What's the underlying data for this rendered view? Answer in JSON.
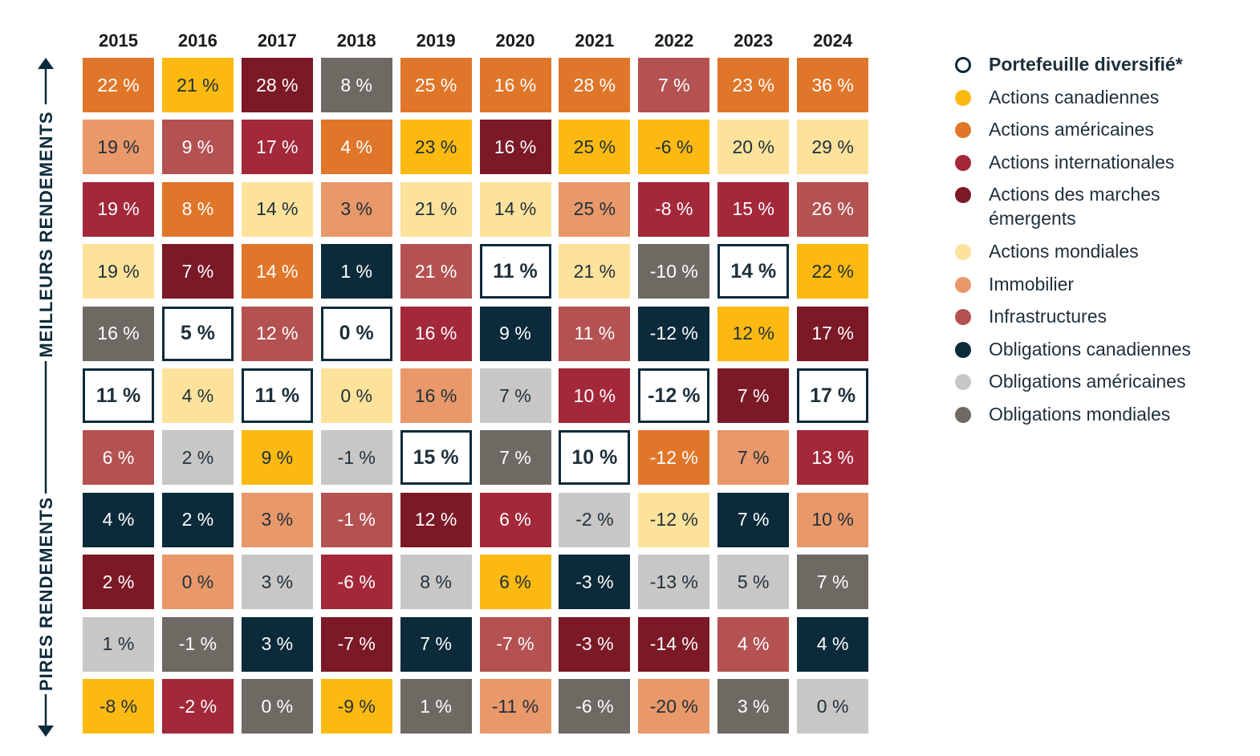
{
  "years": [
    "2015",
    "2016",
    "2017",
    "2018",
    "2019",
    "2020",
    "2021",
    "2022",
    "2023",
    "2024"
  ],
  "axis_labels": {
    "top": "MEILLEURS RENDEMENTS",
    "bottom": "PIRES RENDEMENTS"
  },
  "legend": [
    {
      "name": "Portefeuille diversifié*",
      "color": "#ffffff",
      "outline": "#0b2a3a"
    },
    {
      "name": "Actions canadiennes",
      "color": "#fbb912"
    },
    {
      "name": "Actions américaines",
      "color": "#e0762a"
    },
    {
      "name": "Actions internationales",
      "color": "#a3283a"
    },
    {
      "name": "Actions des marches émergents",
      "color": "#7b1927"
    },
    {
      "name": "Actions mondiales",
      "color": "#fde29c"
    },
    {
      "name": "Immobilier",
      "color": "#e9986a"
    },
    {
      "name": "Infrastructures",
      "color": "#b45252"
    },
    {
      "name": "Obligations canadiennes",
      "color": "#0b2a3a"
    },
    {
      "name": "Obligations américaines",
      "color": "#c9c7c5"
    },
    {
      "name": "Obligations mondiales",
      "color": "#6f6964"
    }
  ],
  "rows": [
    [
      {
        "label": "22 %",
        "asset": 2
      },
      {
        "label": "21 %",
        "asset": 1
      },
      {
        "label": "28 %",
        "asset": 4
      },
      {
        "label": "8 %",
        "asset": 10
      },
      {
        "label": "25 %",
        "asset": 2
      },
      {
        "label": "16 %",
        "asset": 2
      },
      {
        "label": "28 %",
        "asset": 2
      },
      {
        "label": "7 %",
        "asset": 7
      },
      {
        "label": "23 %",
        "asset": 2
      },
      {
        "label": "36 %",
        "asset": 2
      }
    ],
    [
      {
        "label": "19 %",
        "asset": 6
      },
      {
        "label": "9 %",
        "asset": 7
      },
      {
        "label": "17 %",
        "asset": 3
      },
      {
        "label": "4 %",
        "asset": 2
      },
      {
        "label": "23 %",
        "asset": 1
      },
      {
        "label": "16 %",
        "asset": 4
      },
      {
        "label": "25 %",
        "asset": 1
      },
      {
        "label": "-6 %",
        "asset": 1
      },
      {
        "label": "20 %",
        "asset": 5
      },
      {
        "label": "29 %",
        "asset": 5
      }
    ],
    [
      {
        "label": "19 %",
        "asset": 3
      },
      {
        "label": "8 %",
        "asset": 2
      },
      {
        "label": "14 %",
        "asset": 5
      },
      {
        "label": "3 %",
        "asset": 6
      },
      {
        "label": "21 %",
        "asset": 5
      },
      {
        "label": "14 %",
        "asset": 5
      },
      {
        "label": "25 %",
        "asset": 6
      },
      {
        "label": "-8 %",
        "asset": 3
      },
      {
        "label": "15 %",
        "asset": 3
      },
      {
        "label": "26 %",
        "asset": 7
      }
    ],
    [
      {
        "label": "19 %",
        "asset": 5
      },
      {
        "label": "7 %",
        "asset": 4
      },
      {
        "label": "14 %",
        "asset": 2
      },
      {
        "label": "1 %",
        "asset": 8
      },
      {
        "label": "21 %",
        "asset": 7
      },
      {
        "label": "11 %",
        "asset": 0
      },
      {
        "label": "21 %",
        "asset": 5
      },
      {
        "label": "-10 %",
        "asset": 10
      },
      {
        "label": "14 %",
        "asset": 0
      },
      {
        "label": "22 %",
        "asset": 1
      }
    ],
    [
      {
        "label": "16 %",
        "asset": 10
      },
      {
        "label": "5 %",
        "asset": 0
      },
      {
        "label": "12 %",
        "asset": 7
      },
      {
        "label": "0 %",
        "asset": 0
      },
      {
        "label": "16 %",
        "asset": 3
      },
      {
        "label": "9 %",
        "asset": 8
      },
      {
        "label": "11 %",
        "asset": 7
      },
      {
        "label": "-12 %",
        "asset": 8
      },
      {
        "label": "12 %",
        "asset": 1
      },
      {
        "label": "17 %",
        "asset": 4
      }
    ],
    [
      {
        "label": "11 %",
        "asset": 0
      },
      {
        "label": "4 %",
        "asset": 5
      },
      {
        "label": "11 %",
        "asset": 0
      },
      {
        "label": "0 %",
        "asset": 5
      },
      {
        "label": "16 %",
        "asset": 6
      },
      {
        "label": "7 %",
        "asset": 9
      },
      {
        "label": "10 %",
        "asset": 3
      },
      {
        "label": "-12 %",
        "asset": 0
      },
      {
        "label": "7 %",
        "asset": 4
      },
      {
        "label": "17 %",
        "asset": 0
      }
    ],
    [
      {
        "label": "6 %",
        "asset": 7
      },
      {
        "label": "2 %",
        "asset": 9
      },
      {
        "label": "9 %",
        "asset": 1
      },
      {
        "label": "-1 %",
        "asset": 9
      },
      {
        "label": "15 %",
        "asset": 0
      },
      {
        "label": "7 %",
        "asset": 10
      },
      {
        "label": "10 %",
        "asset": 0
      },
      {
        "label": "-12 %",
        "asset": 2
      },
      {
        "label": "7 %",
        "asset": 6
      },
      {
        "label": "13 %",
        "asset": 3
      }
    ],
    [
      {
        "label": "4 %",
        "asset": 8
      },
      {
        "label": "2 %",
        "asset": 8
      },
      {
        "label": "3 %",
        "asset": 6
      },
      {
        "label": "-1 %",
        "asset": 7
      },
      {
        "label": "12 %",
        "asset": 4
      },
      {
        "label": "6 %",
        "asset": 3
      },
      {
        "label": "-2 %",
        "asset": 9
      },
      {
        "label": "-12 %",
        "asset": 5
      },
      {
        "label": "7 %",
        "asset": 8
      },
      {
        "label": "10 %",
        "asset": 6
      }
    ],
    [
      {
        "label": "2 %",
        "asset": 4
      },
      {
        "label": "0 %",
        "asset": 6
      },
      {
        "label": "3 %",
        "asset": 9
      },
      {
        "label": "-6 %",
        "asset": 3
      },
      {
        "label": "8 %",
        "asset": 9
      },
      {
        "label": "6 %",
        "asset": 1
      },
      {
        "label": "-3 %",
        "asset": 8
      },
      {
        "label": "-13 %",
        "asset": 9
      },
      {
        "label": "5 %",
        "asset": 9
      },
      {
        "label": "7 %",
        "asset": 10
      }
    ],
    [
      {
        "label": "1 %",
        "asset": 9
      },
      {
        "label": "-1 %",
        "asset": 10
      },
      {
        "label": "3 %",
        "asset": 8
      },
      {
        "label": "-7 %",
        "asset": 4
      },
      {
        "label": "7 %",
        "asset": 8
      },
      {
        "label": "-7 %",
        "asset": 7
      },
      {
        "label": "-3 %",
        "asset": 4
      },
      {
        "label": "-14 %",
        "asset": 4
      },
      {
        "label": "4 %",
        "asset": 7
      },
      {
        "label": "4 %",
        "asset": 8
      }
    ],
    [
      {
        "label": "-8 %",
        "asset": 1
      },
      {
        "label": "-2 %",
        "asset": 3
      },
      {
        "label": "0 %",
        "asset": 10
      },
      {
        "label": "-9 %",
        "asset": 1
      },
      {
        "label": "1 %",
        "asset": 10
      },
      {
        "label": "-11 %",
        "asset": 6
      },
      {
        "label": "-6 %",
        "asset": 10
      },
      {
        "label": "-20 %",
        "asset": 6
      },
      {
        "label": "3 %",
        "asset": 10
      },
      {
        "label": "0 %",
        "asset": 9
      }
    ]
  ]
}
